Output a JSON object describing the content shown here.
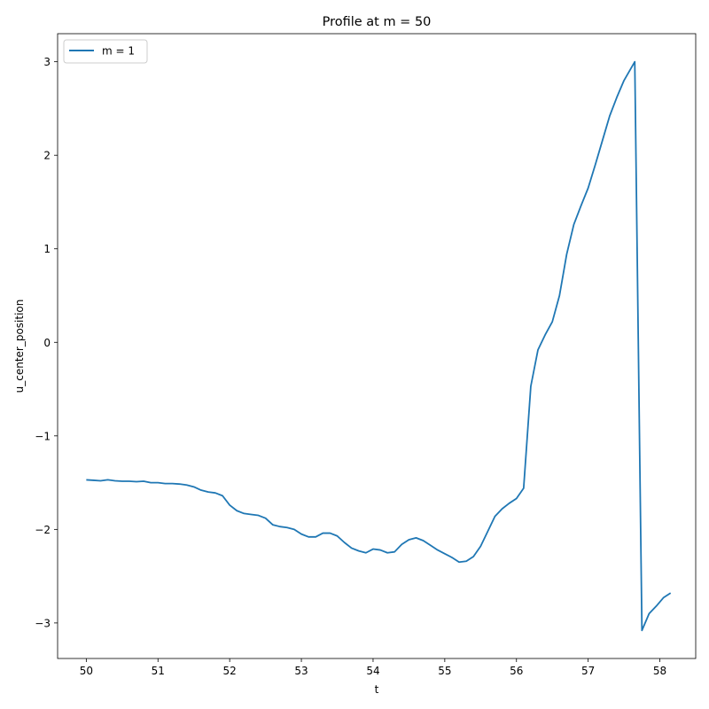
{
  "chart_data": {
    "type": "line",
    "title": "Profile at m = 50",
    "xlabel": "t",
    "ylabel": "u_center_position",
    "xlim": [
      49.6,
      58.5
    ],
    "ylim": [
      -3.38,
      3.3
    ],
    "xticks": [
      50,
      51,
      52,
      53,
      54,
      55,
      56,
      57,
      58
    ],
    "xtick_labels": [
      "50",
      "51",
      "52",
      "53",
      "54",
      "55",
      "56",
      "57",
      "58"
    ],
    "yticks": [
      -3,
      -2,
      -1,
      0,
      1,
      2,
      3
    ],
    "ytick_labels": [
      "−3",
      "−2",
      "−1",
      "0",
      "1",
      "2",
      "3"
    ],
    "grid": false,
    "legend_position": "upper-left",
    "series": [
      {
        "name": "m = 1",
        "color": "#1f77b4",
        "x": [
          50.0,
          50.1,
          50.2,
          50.3,
          50.4,
          50.5,
          50.6,
          50.7,
          50.8,
          50.9,
          51.0,
          51.1,
          51.2,
          51.3,
          51.4,
          51.5,
          51.6,
          51.7,
          51.8,
          51.9,
          52.0,
          52.1,
          52.2,
          52.3,
          52.4,
          52.5,
          52.6,
          52.7,
          52.8,
          52.9,
          53.0,
          53.1,
          53.2,
          53.3,
          53.4,
          53.5,
          53.6,
          53.7,
          53.8,
          53.9,
          54.0,
          54.1,
          54.2,
          54.3,
          54.4,
          54.5,
          54.6,
          54.7,
          54.8,
          54.9,
          55.0,
          55.1,
          55.2,
          55.3,
          55.4,
          55.5,
          55.6,
          55.7,
          55.8,
          55.9,
          56.0,
          56.1,
          56.2,
          56.3,
          56.4,
          56.5,
          56.6,
          56.7,
          56.8,
          56.9,
          57.0,
          57.1,
          57.2,
          57.3,
          57.4,
          57.5,
          57.65,
          57.75,
          57.85,
          57.95,
          58.05,
          58.15
        ],
        "y": [
          -1.47,
          -1.475,
          -1.48,
          -1.47,
          -1.48,
          -1.485,
          -1.485,
          -1.49,
          -1.485,
          -1.5,
          -1.5,
          -1.51,
          -1.51,
          -1.515,
          -1.525,
          -1.545,
          -1.58,
          -1.6,
          -1.61,
          -1.64,
          -1.74,
          -1.8,
          -1.83,
          -1.84,
          -1.85,
          -1.88,
          -1.95,
          -1.97,
          -1.98,
          -2.0,
          -2.05,
          -2.08,
          -2.08,
          -2.04,
          -2.04,
          -2.07,
          -2.14,
          -2.2,
          -2.23,
          -2.25,
          -2.21,
          -2.22,
          -2.25,
          -2.24,
          -2.16,
          -2.11,
          -2.09,
          -2.12,
          -2.17,
          -2.22,
          -2.26,
          -2.3,
          -2.35,
          -2.34,
          -2.29,
          -2.18,
          -2.02,
          -1.86,
          -1.78,
          -1.72,
          -1.67,
          -1.56,
          -0.47,
          -0.08,
          0.08,
          0.22,
          0.5,
          0.94,
          1.26,
          1.46,
          1.65,
          1.9,
          2.16,
          2.42,
          2.62,
          2.8,
          3.0,
          -3.08,
          -2.9,
          -2.82,
          -2.73,
          -2.68
        ]
      }
    ]
  }
}
